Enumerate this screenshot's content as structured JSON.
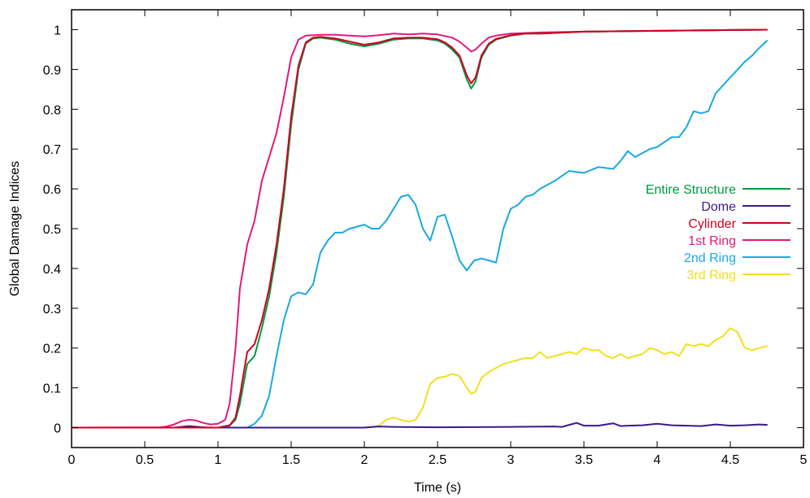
{
  "chart_data": {
    "type": "line",
    "title": "",
    "xlabel": "Time (s)",
    "ylabel": "Global Damage Indices",
    "xlim": [
      0,
      5
    ],
    "ylim": [
      -0.05,
      1.05
    ],
    "xticks": [
      0,
      0.5,
      1,
      1.5,
      2,
      2.5,
      3,
      3.5,
      4,
      4.5,
      5
    ],
    "xtick_labels": [
      "0",
      "0.5",
      "1",
      "1.5",
      "2",
      "2.5",
      "3",
      "3.5",
      "4",
      "4.5",
      "5"
    ],
    "yticks": [
      0,
      0.1,
      0.2,
      0.3,
      0.4,
      0.5,
      0.6,
      0.7,
      0.8,
      0.9,
      1
    ],
    "ytick_labels": [
      "0",
      "0.1",
      "0.2",
      "0.3",
      "0.4",
      "0.5",
      "0.6",
      "0.7",
      "0.8",
      "0.9",
      "1"
    ],
    "grid": false,
    "legend_position": "right, middle",
    "series": [
      {
        "name": "Entire Structure",
        "color": "#009a3e",
        "x": [
          0,
          1.0,
          1.08,
          1.12,
          1.15,
          1.2,
          1.25,
          1.3,
          1.35,
          1.4,
          1.45,
          1.5,
          1.55,
          1.6,
          1.65,
          1.7,
          1.8,
          1.9,
          2.0,
          2.1,
          2.2,
          2.3,
          2.4,
          2.5,
          2.55,
          2.6,
          2.65,
          2.7,
          2.73,
          2.76,
          2.8,
          2.85,
          2.9,
          3.0,
          3.1,
          3.2,
          3.5,
          4.0,
          4.5,
          4.75
        ],
        "y": [
          0,
          0,
          0.005,
          0.02,
          0.06,
          0.16,
          0.18,
          0.25,
          0.33,
          0.44,
          0.58,
          0.76,
          0.9,
          0.965,
          0.978,
          0.98,
          0.975,
          0.965,
          0.958,
          0.965,
          0.975,
          0.978,
          0.978,
          0.973,
          0.965,
          0.95,
          0.93,
          0.875,
          0.852,
          0.87,
          0.93,
          0.962,
          0.975,
          0.985,
          0.99,
          0.99,
          0.995,
          0.997,
          0.999,
          1.0
        ]
      },
      {
        "name": "Dome",
        "color": "#3a1a8c",
        "x": [
          0,
          0.7,
          0.8,
          0.9,
          1.0,
          1.5,
          2.0,
          2.1,
          2.2,
          2.5,
          3.0,
          3.3,
          3.35,
          3.4,
          3.45,
          3.5,
          3.6,
          3.65,
          3.7,
          3.75,
          3.8,
          3.9,
          4.0,
          4.1,
          4.2,
          4.3,
          4.4,
          4.5,
          4.6,
          4.7,
          4.75
        ],
        "y": [
          0,
          0,
          0.004,
          0.001,
          0,
          0,
          0,
          0.003,
          0.002,
          0.001,
          0.002,
          0.003,
          0.002,
          0.007,
          0.012,
          0.005,
          0.005,
          0.008,
          0.011,
          0.004,
          0.005,
          0.006,
          0.01,
          0.006,
          0.005,
          0.004,
          0.008,
          0.005,
          0.006,
          0.008,
          0.007
        ]
      },
      {
        "name": "Cylinder",
        "color": "#d10020",
        "x": [
          0,
          1.0,
          1.08,
          1.12,
          1.15,
          1.2,
          1.25,
          1.3,
          1.35,
          1.4,
          1.45,
          1.5,
          1.55,
          1.6,
          1.65,
          1.7,
          1.8,
          1.9,
          2.0,
          2.1,
          2.2,
          2.3,
          2.4,
          2.5,
          2.55,
          2.6,
          2.65,
          2.7,
          2.73,
          2.76,
          2.8,
          2.85,
          2.9,
          3.0,
          3.1,
          3.2,
          3.5,
          4.0,
          4.5,
          4.75
        ],
        "y": [
          0,
          0,
          0.006,
          0.025,
          0.08,
          0.19,
          0.21,
          0.27,
          0.35,
          0.46,
          0.6,
          0.78,
          0.91,
          0.968,
          0.98,
          0.982,
          0.978,
          0.97,
          0.962,
          0.968,
          0.978,
          0.98,
          0.98,
          0.976,
          0.968,
          0.955,
          0.935,
          0.885,
          0.865,
          0.88,
          0.935,
          0.965,
          0.977,
          0.986,
          0.99,
          0.99,
          0.995,
          0.997,
          0.999,
          1.0
        ]
      },
      {
        "name": "1st Ring",
        "color": "#e01a7a",
        "x": [
          0,
          0.6,
          0.65,
          0.7,
          0.75,
          0.8,
          0.85,
          0.9,
          0.95,
          1.0,
          1.05,
          1.08,
          1.12,
          1.15,
          1.2,
          1.25,
          1.3,
          1.35,
          1.4,
          1.45,
          1.5,
          1.55,
          1.6,
          1.7,
          1.8,
          1.9,
          2.0,
          2.1,
          2.2,
          2.3,
          2.4,
          2.5,
          2.6,
          2.65,
          2.7,
          2.73,
          2.76,
          2.8,
          2.85,
          2.9,
          3.0,
          3.2,
          3.5,
          4.0,
          4.5,
          4.75
        ],
        "y": [
          0,
          0.001,
          0.003,
          0.008,
          0.016,
          0.02,
          0.018,
          0.012,
          0.008,
          0.01,
          0.02,
          0.06,
          0.2,
          0.35,
          0.46,
          0.52,
          0.62,
          0.68,
          0.74,
          0.83,
          0.93,
          0.975,
          0.985,
          0.987,
          0.987,
          0.985,
          0.983,
          0.986,
          0.99,
          0.988,
          0.99,
          0.988,
          0.98,
          0.97,
          0.955,
          0.945,
          0.95,
          0.965,
          0.98,
          0.985,
          0.99,
          0.993,
          0.995,
          0.997,
          0.999,
          1.0
        ]
      },
      {
        "name": "2nd Ring",
        "color": "#1aa9e0",
        "x": [
          0,
          1.2,
          1.25,
          1.3,
          1.35,
          1.4,
          1.45,
          1.5,
          1.55,
          1.6,
          1.65,
          1.7,
          1.75,
          1.8,
          1.85,
          1.9,
          1.95,
          2.0,
          2.05,
          2.1,
          2.15,
          2.2,
          2.25,
          2.3,
          2.35,
          2.4,
          2.45,
          2.5,
          2.55,
          2.6,
          2.65,
          2.7,
          2.75,
          2.8,
          2.85,
          2.9,
          2.95,
          3.0,
          3.05,
          3.1,
          3.15,
          3.2,
          3.3,
          3.4,
          3.5,
          3.6,
          3.7,
          3.75,
          3.8,
          3.85,
          3.9,
          3.95,
          4.0,
          4.1,
          4.15,
          4.2,
          4.25,
          4.3,
          4.35,
          4.4,
          4.45,
          4.5,
          4.55,
          4.6,
          4.65,
          4.7,
          4.75
        ],
        "y": [
          0,
          0,
          0.01,
          0.03,
          0.08,
          0.18,
          0.27,
          0.33,
          0.34,
          0.335,
          0.36,
          0.44,
          0.47,
          0.49,
          0.49,
          0.5,
          0.505,
          0.51,
          0.5,
          0.5,
          0.52,
          0.55,
          0.58,
          0.585,
          0.56,
          0.5,
          0.47,
          0.53,
          0.535,
          0.48,
          0.42,
          0.395,
          0.42,
          0.425,
          0.42,
          0.415,
          0.5,
          0.55,
          0.56,
          0.58,
          0.585,
          0.6,
          0.62,
          0.645,
          0.64,
          0.655,
          0.65,
          0.67,
          0.695,
          0.68,
          0.69,
          0.7,
          0.705,
          0.73,
          0.73,
          0.755,
          0.795,
          0.79,
          0.795,
          0.84,
          0.86,
          0.88,
          0.9,
          0.92,
          0.935,
          0.955,
          0.972
        ]
      },
      {
        "name": "3rd Ring",
        "color": "#f0e020",
        "x": [
          0,
          2.0,
          2.1,
          2.15,
          2.2,
          2.25,
          2.3,
          2.35,
          2.4,
          2.45,
          2.5,
          2.55,
          2.6,
          2.65,
          2.7,
          2.73,
          2.76,
          2.8,
          2.85,
          2.9,
          2.95,
          3.0,
          3.05,
          3.1,
          3.15,
          3.2,
          3.25,
          3.3,
          3.35,
          3.4,
          3.45,
          3.5,
          3.55,
          3.6,
          3.65,
          3.7,
          3.75,
          3.8,
          3.85,
          3.9,
          3.95,
          4.0,
          4.05,
          4.1,
          4.15,
          4.2,
          4.25,
          4.3,
          4.35,
          4.4,
          4.45,
          4.5,
          4.55,
          4.6,
          4.65,
          4.7,
          4.75
        ],
        "y": [
          0,
          0,
          0.005,
          0.02,
          0.025,
          0.02,
          0.015,
          0.02,
          0.05,
          0.11,
          0.125,
          0.128,
          0.135,
          0.13,
          0.1,
          0.085,
          0.09,
          0.125,
          0.14,
          0.15,
          0.16,
          0.165,
          0.17,
          0.175,
          0.175,
          0.19,
          0.175,
          0.18,
          0.185,
          0.19,
          0.185,
          0.2,
          0.195,
          0.195,
          0.18,
          0.175,
          0.185,
          0.175,
          0.18,
          0.185,
          0.2,
          0.195,
          0.185,
          0.19,
          0.18,
          0.21,
          0.205,
          0.21,
          0.205,
          0.22,
          0.23,
          0.25,
          0.24,
          0.2,
          0.195,
          0.2,
          0.205
        ]
      }
    ]
  }
}
